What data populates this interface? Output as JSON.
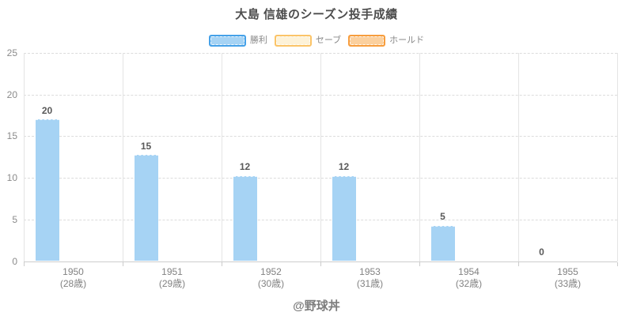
{
  "chart": {
    "footer": "@野球丼"
  },
  "chart_data": {
    "type": "bar",
    "title": "大島 信雄のシーズン投手成績",
    "categories": [
      "1950",
      "1951",
      "1952",
      "1953",
      "1954",
      "1955"
    ],
    "category_sublabels": [
      "(28歳)",
      "(29歳)",
      "(30歳)",
      "(31歳)",
      "(32歳)",
      "(33歳)"
    ],
    "series": [
      {
        "name": "勝利",
        "values": [
          20,
          15,
          12,
          12,
          5,
          0
        ],
        "fill": "#A6D3F4",
        "border": "#45A1E8"
      },
      {
        "name": "セーブ",
        "fill": "#FDF2D8",
        "border": "#FBC468"
      },
      {
        "name": "ホールド",
        "fill": "#FBD09E",
        "border": "#F79D3D"
      }
    ],
    "xlabel": "",
    "ylabel": "",
    "ylim": [
      0,
      25
    ],
    "yticks": [
      0,
      5,
      10,
      15,
      20,
      25
    ],
    "grid": true,
    "legend_position": "top",
    "bar_height_scale": 0.85,
    "colors": {
      "title_text": "#4d4d4d",
      "axis_label_text": "#8b8b8b",
      "value_label_text": "#595959",
      "legend_text": "#898989",
      "grid_line": "#e0e0e0",
      "axis_line": "#cccccc",
      "footer_text": "#7d7d7d"
    }
  }
}
